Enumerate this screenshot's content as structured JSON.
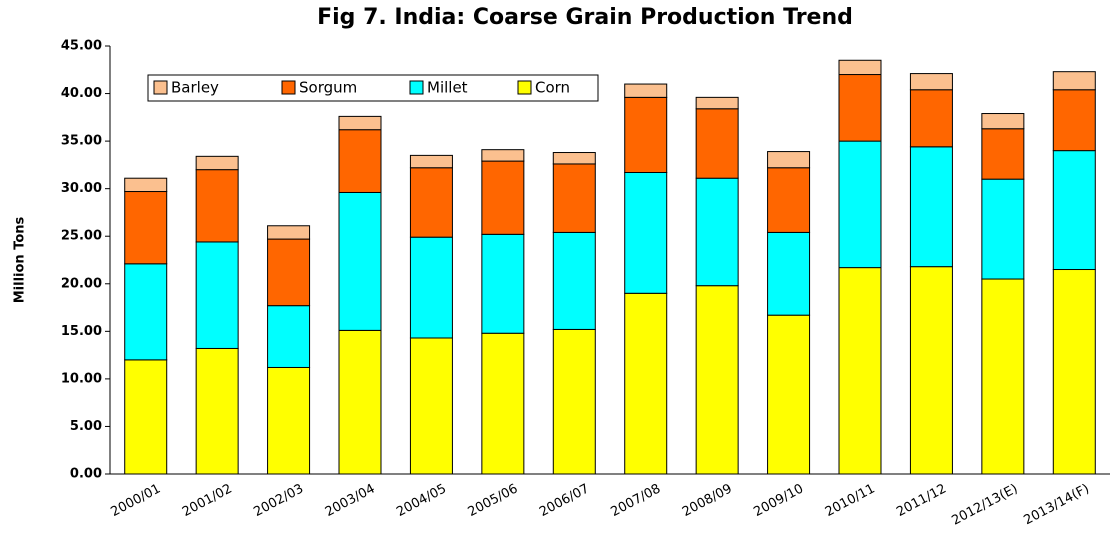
{
  "chart_data": {
    "type": "stacked_bar",
    "title": "Fig 7. India: Coarse Grain Production Trend",
    "y_label": "Million Tons",
    "categories": [
      "2000/01",
      "2001/02",
      "2002/03",
      "2003/04",
      "2004/05",
      "2005/06",
      "2006/07",
      "2007/08",
      "2008/09",
      "2009/10",
      "2010/11",
      "2011/12",
      "2012/13(E)",
      "2013/14(F)"
    ],
    "series": [
      {
        "name": "Corn",
        "color": "#ffff00",
        "values": [
          12.0,
          13.2,
          11.2,
          15.1,
          14.3,
          14.8,
          15.2,
          19.0,
          19.8,
          16.7,
          21.7,
          21.8,
          20.5,
          21.5
        ]
      },
      {
        "name": "Millet",
        "color": "#00ffff",
        "values": [
          10.1,
          11.2,
          6.5,
          14.5,
          10.6,
          10.4,
          10.2,
          12.7,
          11.3,
          8.7,
          13.3,
          12.6,
          10.5,
          12.5
        ]
      },
      {
        "name": "Sorgum",
        "color": "#ff6600",
        "values": [
          7.6,
          7.6,
          7.0,
          6.6,
          7.3,
          7.7,
          7.2,
          7.9,
          7.3,
          6.8,
          7.0,
          6.0,
          5.3,
          6.4
        ]
      },
      {
        "name": "Barley",
        "color": "#fbc08f",
        "values": [
          1.4,
          1.4,
          1.4,
          1.4,
          1.3,
          1.2,
          1.2,
          1.4,
          1.2,
          1.7,
          1.5,
          1.7,
          1.6,
          1.9
        ]
      }
    ],
    "ylim": [
      0,
      45
    ],
    "yticks": [
      {
        "value": 0,
        "label": "0.00"
      },
      {
        "value": 5,
        "label": "5.00"
      },
      {
        "value": 10,
        "label": "10.00"
      },
      {
        "value": 15,
        "label": "15.00"
      },
      {
        "value": 20,
        "label": "20.00"
      },
      {
        "value": 25,
        "label": "25.00"
      },
      {
        "value": 30,
        "label": "30.00"
      },
      {
        "value": 35,
        "label": "35.00"
      },
      {
        "value": 40,
        "label": "40.00"
      },
      {
        "value": 45,
        "label": "45.00"
      }
    ],
    "legend": "top-left"
  }
}
